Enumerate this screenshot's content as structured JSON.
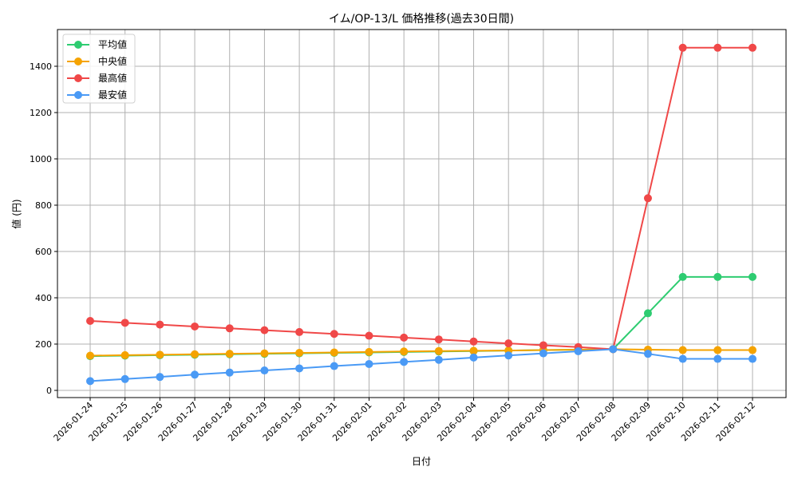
{
  "chart_data": {
    "type": "line",
    "title": "イム/OP-13/L 価格推移(過去30日間)",
    "xlabel": "日付",
    "ylabel": "値 (円)",
    "ylim": [
      -40,
      1545
    ],
    "yticks": [
      0,
      200,
      400,
      600,
      800,
      1000,
      1200,
      1400
    ],
    "grid": true,
    "legend_position": "upper left",
    "categories": [
      "2026-01-24",
      "2026-01-25",
      "2026-01-26",
      "2026-01-27",
      "2026-01-28",
      "2026-01-29",
      "2026-01-30",
      "2026-01-31",
      "2026-02-01",
      "2026-02-02",
      "2026-02-03",
      "2026-02-04",
      "2026-02-05",
      "2026-02-06",
      "2026-02-07",
      "2026-02-08",
      "2026-02-09",
      "2026-02-10",
      "2026-02-11",
      "2026-02-12"
    ],
    "series": [
      {
        "name": "平均値",
        "color": "#2ecc71",
        "values": [
          148,
          150,
          152,
          154,
          156,
          158,
          160,
          162,
          164,
          166,
          168,
          170,
          172,
          174,
          176,
          178,
          333,
          490,
          490,
          490
        ]
      },
      {
        "name": "中央値",
        "color": "#f5a300",
        "values": [
          150,
          152,
          154,
          156,
          158,
          160,
          162,
          164,
          166,
          168,
          170,
          171,
          172,
          174,
          176,
          178,
          176,
          174,
          174,
          174
        ]
      },
      {
        "name": "最高値",
        "color": "#f04848",
        "values": [
          300,
          292,
          284,
          276,
          268,
          260,
          252,
          244,
          236,
          228,
          220,
          211,
          203,
          195,
          187,
          178,
          830,
          1480,
          1480,
          1480
        ]
      },
      {
        "name": "最安値",
        "color": "#4a9af5",
        "values": [
          40,
          49,
          58,
          68,
          77,
          86,
          95,
          105,
          114,
          123,
          132,
          142,
          151,
          160,
          169,
          178,
          158,
          136,
          136,
          136
        ]
      }
    ]
  }
}
